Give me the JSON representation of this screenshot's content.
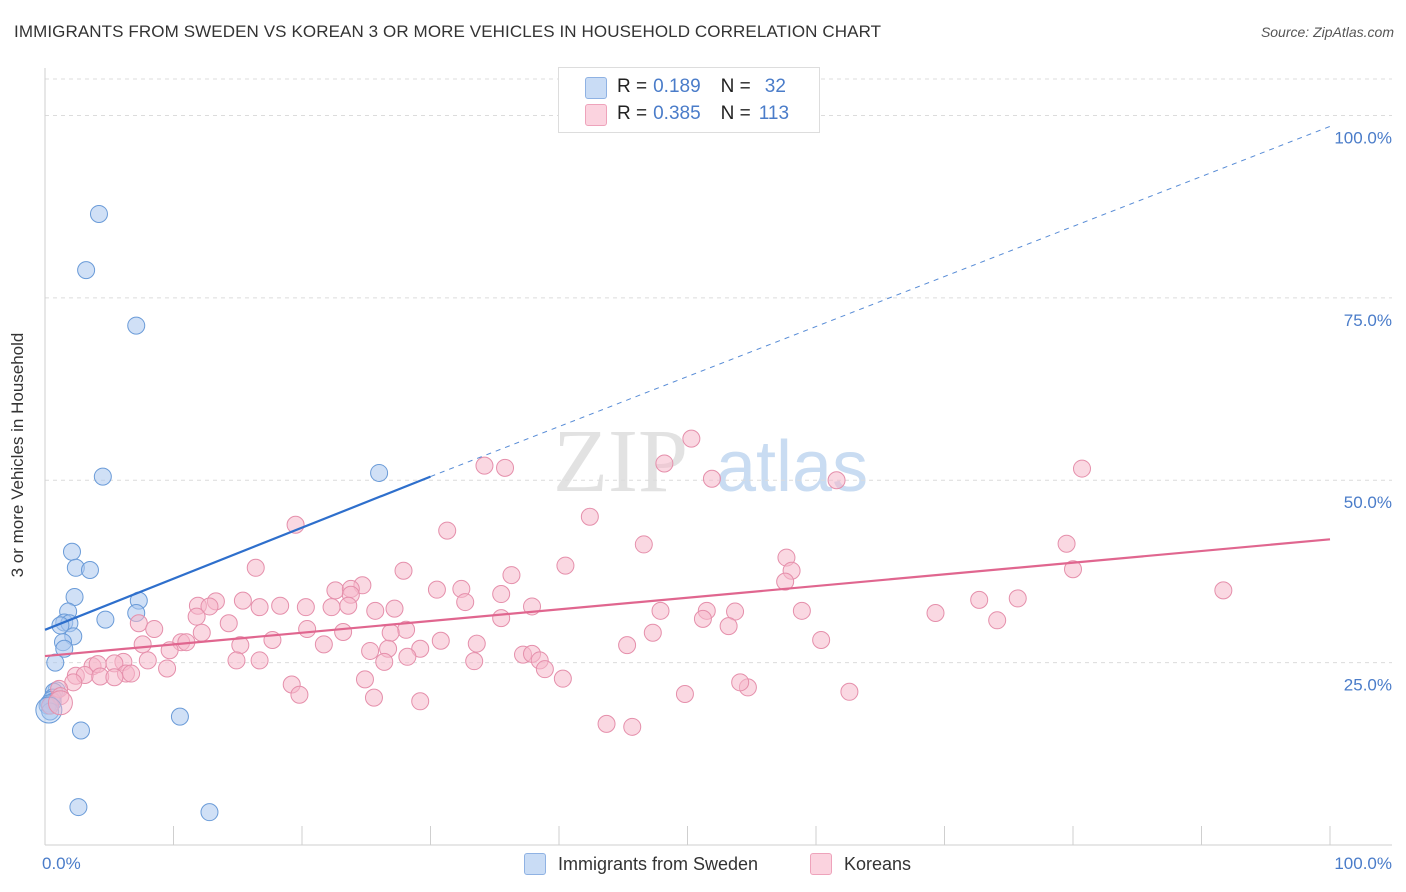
{
  "header": {
    "title": "IMMIGRANTS FROM SWEDEN VS KOREAN 3 OR MORE VEHICLES IN HOUSEHOLD CORRELATION CHART",
    "source": "Source: ZipAtlas.com"
  },
  "watermark": {
    "zip": "ZIP",
    "atlas": "atlas"
  },
  "legend": {
    "rows": [
      {
        "r_label": "R =",
        "r_value": "0.189",
        "n_label": "N =",
        "n_value": "32",
        "color": "#a9c7ef"
      },
      {
        "r_label": "R =",
        "r_value": "0.385",
        "n_label": "N =",
        "n_value": "113",
        "color": "#f6b8cb"
      }
    ]
  },
  "bottom_legend": [
    {
      "label": "Immigrants from Sweden",
      "color": "#a9c7ef"
    },
    {
      "label": "Koreans",
      "color": "#f6b8cb"
    }
  ],
  "chart_data": {
    "type": "scatter",
    "title": "IMMIGRANTS FROM SWEDEN VS KOREAN 3 OR MORE VEHICLES IN HOUSEHOLD CORRELATION CHART",
    "xlabel": "",
    "ylabel": "3 or more Vehicles in Household",
    "xlim": [
      0,
      100
    ],
    "ylim": [
      0,
      105
    ],
    "x_tick_labels": [
      "0.0%",
      "100.0%"
    ],
    "y_tick_labels": [
      {
        "value": 25,
        "label": "25.0%"
      },
      {
        "value": 50,
        "label": "50.0%"
      },
      {
        "value": 75,
        "label": "75.0%"
      },
      {
        "value": 100,
        "label": "100.0%"
      }
    ],
    "grid": true,
    "legend_position": "top-center",
    "series": [
      {
        "name": "Immigrants from Sweden",
        "color": "#a9c7ef",
        "stroke": "#6a9bd8",
        "trend_color": "#2e6fcc",
        "trend": {
          "x0": 0,
          "y0": 29.5,
          "x1": 30,
          "y1": 50.5,
          "dashed_to_x": 100,
          "dashed_to_y": 98.5
        },
        "points": [
          [
            4.2,
            86.5
          ],
          [
            3.2,
            78.8
          ],
          [
            7.1,
            71.2
          ],
          [
            4.5,
            50.5
          ],
          [
            26,
            51
          ],
          [
            2.1,
            40.2
          ],
          [
            2.4,
            38
          ],
          [
            3.5,
            37.7
          ],
          [
            2.3,
            34
          ],
          [
            7.3,
            33.5
          ],
          [
            1.8,
            32
          ],
          [
            7.1,
            31.8
          ],
          [
            1.5,
            30.5
          ],
          [
            1.9,
            30.4
          ],
          [
            4.7,
            30.9
          ],
          [
            1.2,
            30.1
          ],
          [
            2.2,
            28.6
          ],
          [
            1.4,
            27.8
          ],
          [
            1.5,
            26.9
          ],
          [
            0.8,
            25
          ],
          [
            0.9,
            21.2
          ],
          [
            0.7,
            21
          ],
          [
            0.6,
            20.2
          ],
          [
            0.5,
            19.9
          ],
          [
            0.6,
            19.6
          ],
          [
            0.3,
            19.4
          ],
          [
            0.2,
            19.1
          ],
          [
            0.4,
            18.3
          ],
          [
            2.8,
            15.7
          ],
          [
            10.5,
            17.6
          ],
          [
            2.6,
            5.2
          ],
          [
            12.8,
            4.5
          ]
        ]
      },
      {
        "name": "Koreans",
        "color": "#f6b8cb",
        "stroke": "#e58fab",
        "trend_color": "#e0668f",
        "trend": {
          "x0": 0,
          "y0": 25.9,
          "x1": 100,
          "y1": 41.9
        },
        "points": [
          [
            50.3,
            55.7
          ],
          [
            48.2,
            52.3
          ],
          [
            34.2,
            52
          ],
          [
            35.8,
            51.7
          ],
          [
            51.9,
            50.2
          ],
          [
            61.6,
            50
          ],
          [
            80.7,
            51.6
          ],
          [
            42.4,
            45
          ],
          [
            19.5,
            43.9
          ],
          [
            31.3,
            43.1
          ],
          [
            46.6,
            41.2
          ],
          [
            79.5,
            41.3
          ],
          [
            57.7,
            39.4
          ],
          [
            40.5,
            38.3
          ],
          [
            16.4,
            38
          ],
          [
            27.9,
            37.6
          ],
          [
            36.3,
            37
          ],
          [
            58.1,
            37.6
          ],
          [
            80,
            37.8
          ],
          [
            57.6,
            36.1
          ],
          [
            24.7,
            35.6
          ],
          [
            30.5,
            35
          ],
          [
            22.6,
            34.9
          ],
          [
            23.8,
            35.1
          ],
          [
            32.4,
            35.1
          ],
          [
            23.8,
            34.3
          ],
          [
            35.5,
            34.4
          ],
          [
            13.3,
            33.4
          ],
          [
            15.4,
            33.5
          ],
          [
            32.7,
            33.3
          ],
          [
            72.7,
            33.6
          ],
          [
            75.7,
            33.8
          ],
          [
            91.7,
            34.9
          ],
          [
            11.9,
            32.8
          ],
          [
            12.8,
            32.7
          ],
          [
            18.3,
            32.8
          ],
          [
            20.3,
            32.6
          ],
          [
            22.3,
            32.6
          ],
          [
            23.6,
            32.8
          ],
          [
            16.7,
            32.6
          ],
          [
            25.7,
            32.1
          ],
          [
            27.2,
            32.4
          ],
          [
            37.9,
            32.7
          ],
          [
            47.9,
            32.1
          ],
          [
            51.5,
            32.1
          ],
          [
            53.7,
            32
          ],
          [
            58.9,
            32.1
          ],
          [
            69.3,
            31.8
          ],
          [
            11.8,
            31.3
          ],
          [
            35.5,
            31.1
          ],
          [
            51.2,
            31
          ],
          [
            74.1,
            30.8
          ],
          [
            7.3,
            30.4
          ],
          [
            14.3,
            30.4
          ],
          [
            20.4,
            29.6
          ],
          [
            28.1,
            29.5
          ],
          [
            8.5,
            29.6
          ],
          [
            26.9,
            29.1
          ],
          [
            23.2,
            29.2
          ],
          [
            12.2,
            29.1
          ],
          [
            30.8,
            28
          ],
          [
            10.6,
            27.8
          ],
          [
            11,
            27.8
          ],
          [
            17.7,
            28.1
          ],
          [
            33.6,
            27.6
          ],
          [
            47.3,
            29.1
          ],
          [
            53.2,
            30
          ],
          [
            60.4,
            28.1
          ],
          [
            7.6,
            27.5
          ],
          [
            15.2,
            27.4
          ],
          [
            21.7,
            27.5
          ],
          [
            45.3,
            27.4
          ],
          [
            29.2,
            26.9
          ],
          [
            26.7,
            26.9
          ],
          [
            25.3,
            26.6
          ],
          [
            37.2,
            26.1
          ],
          [
            37.9,
            26.2
          ],
          [
            9.7,
            26.7
          ],
          [
            16.7,
            25.3
          ],
          [
            8,
            25.3
          ],
          [
            14.9,
            25.3
          ],
          [
            28.2,
            25.8
          ],
          [
            33.4,
            25.2
          ],
          [
            6.1,
            25.1
          ],
          [
            5.4,
            24.9
          ],
          [
            26.4,
            25.1
          ],
          [
            38.5,
            25.3
          ],
          [
            9.5,
            24.2
          ],
          [
            38.9,
            24.1
          ],
          [
            3.7,
            24.5
          ],
          [
            4.1,
            24.8
          ],
          [
            6.3,
            23.5
          ],
          [
            6.7,
            23.5
          ],
          [
            2.4,
            23.2
          ],
          [
            3.1,
            23.3
          ],
          [
            4.3,
            23.1
          ],
          [
            5.4,
            23
          ],
          [
            24.9,
            22.7
          ],
          [
            40.3,
            22.8
          ],
          [
            19.2,
            22
          ],
          [
            54.7,
            21.6
          ],
          [
            54.1,
            22.3
          ],
          [
            62.6,
            21
          ],
          [
            2.2,
            22.3
          ],
          [
            1.1,
            21.4
          ],
          [
            49.8,
            20.7
          ],
          [
            19.8,
            20.6
          ],
          [
            25.6,
            20.2
          ],
          [
            29.2,
            19.7
          ],
          [
            43.7,
            16.6
          ],
          [
            45.7,
            16.2
          ],
          [
            1.2,
            20.4
          ],
          [
            0.4,
            19.1
          ]
        ]
      }
    ]
  }
}
